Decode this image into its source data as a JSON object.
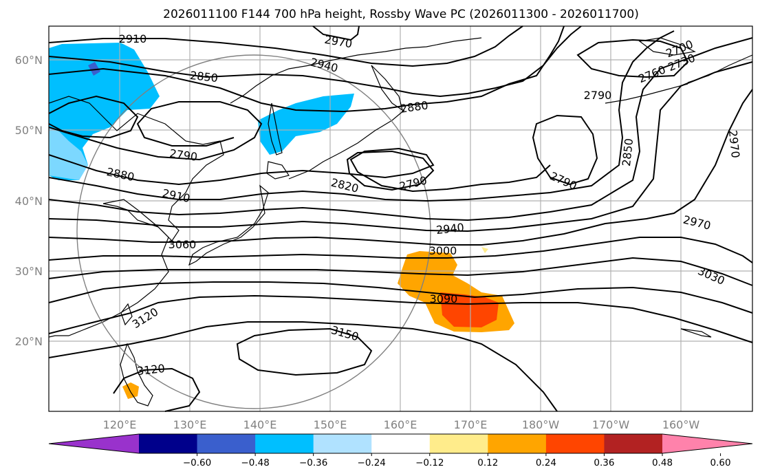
{
  "title": "2026011100 F144 700 hPa height, Rossby Wave PC (2026011300 - 2026011700)",
  "lon_labels": [
    "120°E",
    "130°E",
    "140°E",
    "150°E",
    "160°E",
    "170°E",
    "180°W",
    "170°W",
    "160°W"
  ],
  "lat_labels": [
    "60°N",
    "50°N",
    "40°N",
    "30°N",
    "20°N"
  ],
  "contour_labels": [
    "2910",
    "2970",
    "2940",
    "2850",
    "2880",
    "2790",
    "2880",
    "2910",
    "3060",
    "2820",
    "2790",
    "2940",
    "3000",
    "3090",
    "3120",
    "3150",
    "3120",
    "2700",
    "2730",
    "2760",
    "2790",
    "2850",
    "2970",
    "2790",
    "2970",
    "3030"
  ],
  "colorbar": {
    "ticks": [
      "−0.60",
      "−0.48",
      "−0.36",
      "−0.24",
      "−0.12",
      "0.12",
      "0.24",
      "0.36",
      "0.48",
      "0.60"
    ],
    "colors": [
      "#9932cc",
      "#00008b",
      "#3a5fcd",
      "#00bfff",
      "#b0e2ff",
      "#ffffff",
      "#ffec8b",
      "#ffa500",
      "#ff4500",
      "#b22222",
      "#ff82ab"
    ]
  }
}
